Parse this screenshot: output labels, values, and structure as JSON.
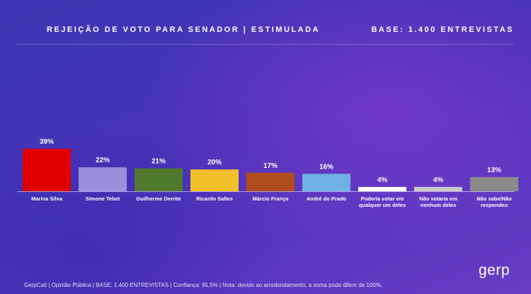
{
  "header": {
    "title": "REJEIÇÃO DE VOTO PARA SENADOR | ESTIMULADA",
    "base": "BASE: 1.400 ENTREVISTAS"
  },
  "footer": {
    "text": "GerpCati | Opinião Pública | BASE: 1.400 ENTREVISTAS | Confiança: 95,5% | Nota: devido ao arredondamento, a soma pode diferir de 100%."
  },
  "logo": {
    "text": "gerp"
  },
  "chart_data": {
    "type": "bar",
    "categories": [
      "Marina Silva",
      "Simone Tebet",
      "Guilherme Derrite",
      "Ricardo Salles",
      "Márcio França",
      "André do Prado",
      "Poderia votar em qualquer um deles",
      "Não votaria em nenhum deles",
      "Não sabe/Não respondeu"
    ],
    "values": [
      39,
      22,
      21,
      20,
      17,
      16,
      4,
      4,
      13
    ],
    "value_labels": [
      "39%",
      "22%",
      "21%",
      "20%",
      "17%",
      "16%",
      "4%",
      "4%",
      "13%"
    ],
    "colors": [
      "#e00000",
      "#9a8fdc",
      "#4f7a2e",
      "#f2c02a",
      "#b04e1e",
      "#6fb1e4",
      "#ffffff",
      "#c8c8cc",
      "#8a8a8a"
    ],
    "ylim": [
      0,
      40
    ],
    "grid": false,
    "legend": "none"
  }
}
